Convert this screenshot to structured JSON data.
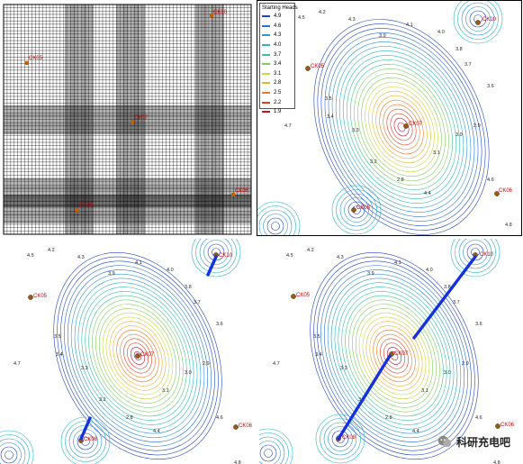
{
  "legend": {
    "title": "Starting Heads",
    "levels": [
      {
        "value": "4.9",
        "color": "#2244cc"
      },
      {
        "value": "4.6",
        "color": "#2a6fd6"
      },
      {
        "value": "4.3",
        "color": "#2f95d9"
      },
      {
        "value": "4.0",
        "color": "#27b8c4"
      },
      {
        "value": "3.7",
        "color": "#3bc79b"
      },
      {
        "value": "3.4",
        "color": "#7fd05a"
      },
      {
        "value": "3.1",
        "color": "#c9d93a"
      },
      {
        "value": "2.8",
        "color": "#efb12b"
      },
      {
        "value": "2.5",
        "color": "#ee7a22"
      },
      {
        "value": "2.2",
        "color": "#e33d1c"
      },
      {
        "value": "1.9",
        "color": "#c8102e"
      }
    ]
  },
  "wells": {
    "ck10": "CK10",
    "ck05": "CK05",
    "ck07": "CK07",
    "ck08": "CK08",
    "ck06": "CK06"
  },
  "contour_labels": [
    "4.5",
    "4.2",
    "4.3",
    "3.9",
    "4.1",
    "4.0",
    "3.8",
    "3.7",
    "3.6",
    "3.5",
    "3.4",
    "3.3",
    "3.2",
    "3.1",
    "3.0",
    "2.9",
    "2.8",
    "4.4",
    "4.6",
    "4.7",
    "4.8"
  ],
  "watermark": "科研充电吧",
  "pathline_color": "#1530e0"
}
